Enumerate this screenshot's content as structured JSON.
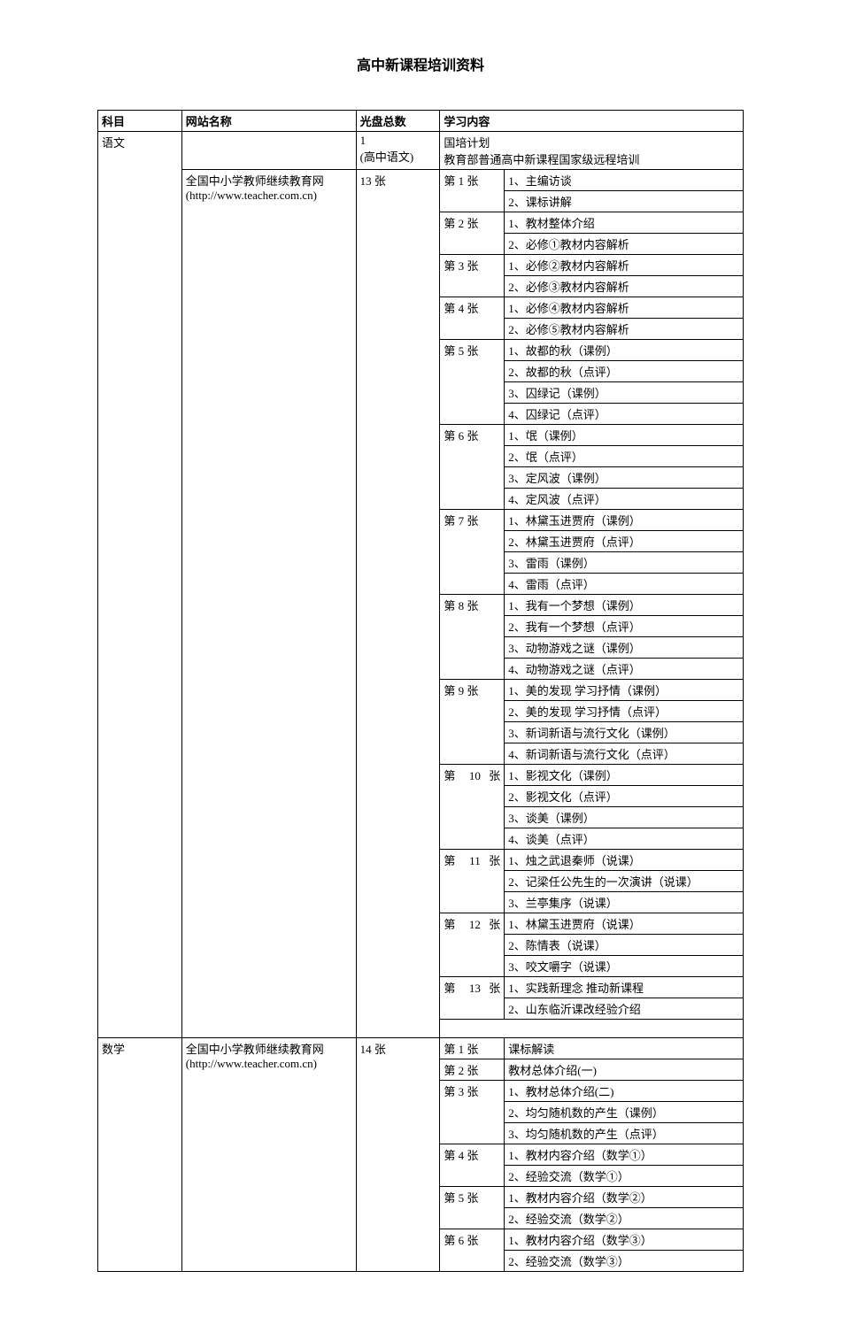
{
  "title": "高中新课程培训资料",
  "headers": {
    "subject": "科目",
    "site": "网站名称",
    "discs": "光盘总数",
    "content": "学习内容"
  },
  "chinese": {
    "subject": "语文",
    "row1_discs": "1\n(高中语文)",
    "row1_content": "国培计划\n教育部普通高中新课程国家级远程培训",
    "site": "全国中小学教师继续教育网(http://www.teacher.com.cn)",
    "discs": "13 张",
    "d1": "第 1 张",
    "d1_1": "1、主编访谈",
    "d1_2": "2、课标讲解",
    "d2": "第 2 张",
    "d2_1": "1、教材整体介绍",
    "d2_2": "2、必修①教材内容解析",
    "d3": "第 3 张",
    "d3_1": "1、必修②教材内容解析",
    "d3_2": "2、必修③教材内容解析",
    "d4": "第 4 张",
    "d4_1": "1、必修④教材内容解析",
    "d4_2": "2、必修⑤教材内容解析",
    "d5": "第 5 张",
    "d5_1": "1、故都的秋（课例）",
    "d5_2": "2、故都的秋（点评）",
    "d5_3": "3、囚绿记（课例）",
    "d5_4": "4、囚绿记（点评）",
    "d6": "第 6 张",
    "d6_1": "1、氓（课例）",
    "d6_2": "2、氓（点评）",
    "d6_3": "3、定风波（课例）",
    "d6_4": "4、定风波（点评）",
    "d7": "第 7 张",
    "d7_1": "1、林黛玉进贾府（课例）",
    "d7_2": "2、林黛玉进贾府（点评）",
    "d7_3": "3、雷雨（课例）",
    "d7_4": "4、雷雨（点评）",
    "d8": "第 8 张",
    "d8_1": "1、我有一个梦想（课例）",
    "d8_2": "2、我有一个梦想（点评）",
    "d8_3": "3、动物游戏之谜（课例）",
    "d8_4": "4、动物游戏之谜（点评）",
    "d9": "第 9 张",
    "d9_1": "1、美的发现 学习抒情（课例）",
    "d9_2": "2、美的发现 学习抒情（点评）",
    "d9_3": "3、新词新语与流行文化（课例）",
    "d9_4": "4、新词新语与流行文化（点评）",
    "d10": "第 10 张",
    "d10_1": "1、影视文化（课例）",
    "d10_2": "2、影视文化（点评）",
    "d10_3": "3、谈美（课例）",
    "d10_4": "4、谈美（点评）",
    "d11": "第 11 张",
    "d11_1": "1、烛之武退秦师（说课）",
    "d11_2": "2、记梁任公先生的一次演讲（说课）",
    "d11_3": "3、兰亭集序（说课）",
    "d12": "第 12 张",
    "d12_1": "1、林黛玉进贾府（说课）",
    "d12_2": "2、陈情表（说课）",
    "d12_3": "3、咬文嚼字（说课）",
    "d13": "第 13 张",
    "d13_1": "1、实践新理念 推动新课程",
    "d13_2": "2、山东临沂课改经验介绍"
  },
  "math": {
    "subject": "数学",
    "site": "全国中小学教师继续教育网(http://www.teacher.com.cn)",
    "discs": "14 张",
    "d1": "第 1 张",
    "d1_1": "课标解读",
    "d2": "第 2 张",
    "d2_1": "教材总体介绍(一)",
    "d3": "第 3 张",
    "d3_1": "1、教材总体介绍(二)",
    "d3_2": "2、均匀随机数的产生（课例）",
    "d3_3": "3、均匀随机数的产生（点评）",
    "d4": "第 4 张",
    "d4_1": "1、教材内容介绍（数学①）",
    "d4_2": "2、经验交流（数学①）",
    "d5": "第 5 张",
    "d5_1": "1、教材内容介绍（数学②）",
    "d5_2": "2、经验交流（数学②）",
    "d6": "第 6 张",
    "d6_1": "1、教材内容介绍（数学③）",
    "d6_2": "2、经验交流（数学③）"
  }
}
